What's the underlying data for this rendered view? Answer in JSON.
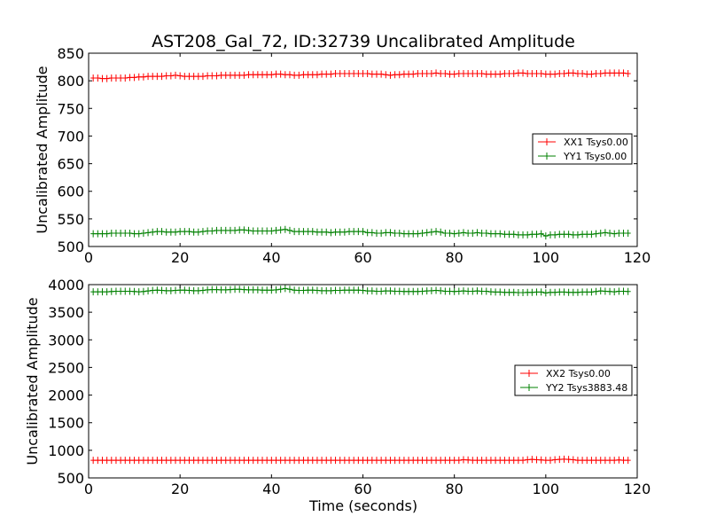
{
  "figure": {
    "title": "AST208_Gal_72, ID:32739 Uncalibrated Amplitude",
    "xlabel": "Time (seconds)"
  },
  "chart_data": [
    {
      "type": "line",
      "ylabel": "Uncalibrated Amplitude",
      "xlim": [
        0,
        120
      ],
      "ylim": [
        500,
        850
      ],
      "xticks": [
        "0",
        "20",
        "40",
        "60",
        "80",
        "100",
        "120"
      ],
      "yticks": [
        "500",
        "550",
        "600",
        "650",
        "700",
        "750",
        "800",
        "850"
      ],
      "grid": false,
      "legend_position": "center-right",
      "series": [
        {
          "name": "XX1 Tsys0.00",
          "color": "#ff0000",
          "marker": "plus",
          "x": [
            1,
            2,
            3,
            4,
            5,
            6,
            7,
            8,
            9,
            10,
            11,
            12,
            13,
            14,
            15,
            16,
            17,
            18,
            19,
            20,
            21,
            22,
            23,
            24,
            25,
            26,
            27,
            28,
            29,
            30,
            31,
            32,
            33,
            34,
            35,
            36,
            37,
            38,
            39,
            40,
            41,
            42,
            43,
            44,
            45,
            46,
            47,
            48,
            49,
            50,
            51,
            52,
            53,
            54,
            55,
            56,
            57,
            58,
            59,
            60,
            61,
            62,
            63,
            64,
            65,
            66,
            67,
            68,
            69,
            70,
            71,
            72,
            73,
            74,
            75,
            76,
            77,
            78,
            79,
            80,
            81,
            82,
            83,
            84,
            85,
            86,
            87,
            88,
            89,
            90,
            91,
            92,
            93,
            94,
            95,
            96,
            97,
            98,
            99,
            100,
            101,
            102,
            103,
            104,
            105,
            106,
            107,
            108,
            109,
            110,
            111,
            112,
            113,
            114,
            115,
            116,
            117,
            118
          ],
          "y": [
            805,
            805,
            804,
            804,
            805,
            805,
            805,
            805,
            806,
            806,
            807,
            807,
            808,
            808,
            808,
            808,
            809,
            809,
            810,
            809,
            808,
            808,
            808,
            808,
            808,
            809,
            809,
            809,
            810,
            810,
            810,
            810,
            810,
            810,
            811,
            811,
            811,
            811,
            811,
            811,
            812,
            812,
            811,
            811,
            810,
            810,
            811,
            811,
            811,
            811,
            812,
            812,
            812,
            813,
            813,
            813,
            813,
            813,
            813,
            813,
            813,
            812,
            812,
            812,
            811,
            810,
            811,
            811,
            812,
            812,
            812,
            813,
            813,
            813,
            813,
            814,
            813,
            813,
            812,
            812,
            813,
            813,
            813,
            813,
            813,
            813,
            812,
            812,
            812,
            812,
            813,
            813,
            813,
            814,
            814,
            813,
            813,
            813,
            813,
            812,
            812,
            812,
            813,
            813,
            814,
            814,
            813,
            813,
            812,
            812,
            813,
            813,
            814,
            814,
            814,
            814,
            814,
            813
          ]
        },
        {
          "name": "YY1 Tsys0.00",
          "color": "#008000",
          "marker": "plus",
          "x": [
            1,
            2,
            3,
            4,
            5,
            6,
            7,
            8,
            9,
            10,
            11,
            12,
            13,
            14,
            15,
            16,
            17,
            18,
            19,
            20,
            21,
            22,
            23,
            24,
            25,
            26,
            27,
            28,
            29,
            30,
            31,
            32,
            33,
            34,
            35,
            36,
            37,
            38,
            39,
            40,
            41,
            42,
            43,
            44,
            45,
            46,
            47,
            48,
            49,
            50,
            51,
            52,
            53,
            54,
            55,
            56,
            57,
            58,
            59,
            60,
            61,
            62,
            63,
            64,
            65,
            66,
            67,
            68,
            69,
            70,
            71,
            72,
            73,
            74,
            75,
            76,
            77,
            78,
            79,
            80,
            81,
            82,
            83,
            84,
            85,
            86,
            87,
            88,
            89,
            90,
            91,
            92,
            93,
            94,
            95,
            96,
            97,
            98,
            99,
            100,
            101,
            102,
            103,
            104,
            105,
            106,
            107,
            108,
            109,
            110,
            111,
            112,
            113,
            114,
            115,
            116,
            117,
            118
          ],
          "y": [
            523,
            523,
            523,
            523,
            524,
            524,
            524,
            524,
            524,
            523,
            523,
            524,
            525,
            526,
            527,
            527,
            526,
            526,
            526,
            527,
            527,
            527,
            526,
            526,
            527,
            528,
            528,
            529,
            529,
            529,
            529,
            529,
            530,
            530,
            529,
            528,
            528,
            528,
            528,
            528,
            529,
            530,
            531,
            529,
            527,
            527,
            527,
            527,
            527,
            526,
            526,
            526,
            525,
            526,
            526,
            526,
            527,
            527,
            527,
            527,
            525,
            525,
            524,
            524,
            525,
            525,
            524,
            524,
            523,
            523,
            523,
            523,
            524,
            525,
            526,
            527,
            526,
            524,
            524,
            523,
            524,
            525,
            524,
            524,
            525,
            524,
            524,
            523,
            523,
            523,
            522,
            522,
            522,
            521,
            521,
            521,
            522,
            522,
            523,
            519,
            521,
            521,
            522,
            522,
            522,
            521,
            521,
            522,
            522,
            522,
            523,
            524,
            525,
            524,
            523,
            524,
            524,
            524
          ]
        }
      ]
    },
    {
      "type": "line",
      "ylabel": "Uncalibrated Amplitude",
      "xlim": [
        0,
        120
      ],
      "ylim": [
        500,
        4000
      ],
      "xticks": [
        "0",
        "20",
        "40",
        "60",
        "80",
        "100",
        "120"
      ],
      "yticks": [
        "500",
        "1000",
        "1500",
        "2000",
        "2500",
        "3000",
        "3500",
        "4000"
      ],
      "grid": false,
      "legend_position": "center-right",
      "series": [
        {
          "name": "XX2 Tsys0.00",
          "color": "#ff0000",
          "marker": "plus",
          "x": [
            1,
            2,
            3,
            4,
            5,
            6,
            7,
            8,
            9,
            10,
            11,
            12,
            13,
            14,
            15,
            16,
            17,
            18,
            19,
            20,
            21,
            22,
            23,
            24,
            25,
            26,
            27,
            28,
            29,
            30,
            31,
            32,
            33,
            34,
            35,
            36,
            37,
            38,
            39,
            40,
            41,
            42,
            43,
            44,
            45,
            46,
            47,
            48,
            49,
            50,
            51,
            52,
            53,
            54,
            55,
            56,
            57,
            58,
            59,
            60,
            61,
            62,
            63,
            64,
            65,
            66,
            67,
            68,
            69,
            70,
            71,
            72,
            73,
            74,
            75,
            76,
            77,
            78,
            79,
            80,
            81,
            82,
            83,
            84,
            85,
            86,
            87,
            88,
            89,
            90,
            91,
            92,
            93,
            94,
            95,
            96,
            97,
            98,
            99,
            100,
            101,
            102,
            103,
            104,
            105,
            106,
            107,
            108,
            109,
            110,
            111,
            112,
            113,
            114,
            115,
            116,
            117,
            118
          ],
          "y": [
            820,
            820,
            820,
            820,
            820,
            820,
            820,
            820,
            820,
            820,
            820,
            820,
            820,
            820,
            820,
            820,
            820,
            820,
            820,
            820,
            820,
            820,
            820,
            820,
            820,
            820,
            820,
            820,
            820,
            820,
            820,
            820,
            820,
            820,
            820,
            820,
            820,
            820,
            820,
            820,
            820,
            820,
            820,
            820,
            820,
            820,
            820,
            820,
            820,
            820,
            820,
            820,
            820,
            820,
            820,
            820,
            820,
            820,
            820,
            820,
            820,
            820,
            820,
            820,
            820,
            820,
            820,
            820,
            820,
            820,
            820,
            820,
            820,
            820,
            820,
            820,
            820,
            820,
            820,
            820,
            820,
            830,
            825,
            820,
            820,
            820,
            820,
            820,
            820,
            820,
            820,
            820,
            820,
            820,
            820,
            830,
            835,
            830,
            825,
            820,
            820,
            830,
            835,
            840,
            835,
            830,
            820,
            820,
            820,
            820,
            820,
            820,
            820,
            820,
            820,
            825,
            820,
            820
          ]
        },
        {
          "name": "YY2 Tsys3883.48",
          "color": "#008000",
          "marker": "plus",
          "x": [
            1,
            2,
            3,
            4,
            5,
            6,
            7,
            8,
            9,
            10,
            11,
            12,
            13,
            14,
            15,
            16,
            17,
            18,
            19,
            20,
            21,
            22,
            23,
            24,
            25,
            26,
            27,
            28,
            29,
            30,
            31,
            32,
            33,
            34,
            35,
            36,
            37,
            38,
            39,
            40,
            41,
            42,
            43,
            44,
            45,
            46,
            47,
            48,
            49,
            50,
            51,
            52,
            53,
            54,
            55,
            56,
            57,
            58,
            59,
            60,
            61,
            62,
            63,
            64,
            65,
            66,
            67,
            68,
            69,
            70,
            71,
            72,
            73,
            74,
            75,
            76,
            77,
            78,
            79,
            80,
            81,
            82,
            83,
            84,
            85,
            86,
            87,
            88,
            89,
            90,
            91,
            92,
            93,
            94,
            95,
            96,
            97,
            98,
            99,
            100,
            101,
            102,
            103,
            104,
            105,
            106,
            107,
            108,
            109,
            110,
            111,
            112,
            113,
            114,
            115,
            116,
            117,
            118
          ],
          "y": [
            3870,
            3870,
            3870,
            3870,
            3875,
            3880,
            3880,
            3880,
            3880,
            3875,
            3870,
            3875,
            3885,
            3895,
            3900,
            3895,
            3890,
            3890,
            3895,
            3900,
            3900,
            3895,
            3890,
            3890,
            3895,
            3905,
            3910,
            3910,
            3905,
            3905,
            3910,
            3915,
            3915,
            3910,
            3905,
            3905,
            3905,
            3900,
            3900,
            3900,
            3905,
            3915,
            3930,
            3915,
            3900,
            3895,
            3895,
            3900,
            3900,
            3895,
            3890,
            3890,
            3890,
            3895,
            3895,
            3900,
            3900,
            3900,
            3900,
            3895,
            3885,
            3885,
            3880,
            3880,
            3885,
            3885,
            3880,
            3880,
            3875,
            3875,
            3875,
            3875,
            3880,
            3885,
            3890,
            3895,
            3890,
            3880,
            3880,
            3875,
            3880,
            3885,
            3880,
            3880,
            3885,
            3880,
            3880,
            3870,
            3865,
            3865,
            3860,
            3860,
            3860,
            3855,
            3855,
            3860,
            3860,
            3865,
            3865,
            3850,
            3860,
            3860,
            3865,
            3865,
            3860,
            3860,
            3860,
            3865,
            3865,
            3865,
            3875,
            3885,
            3880,
            3875,
            3870,
            3880,
            3880,
            3875
          ]
        }
      ]
    }
  ]
}
